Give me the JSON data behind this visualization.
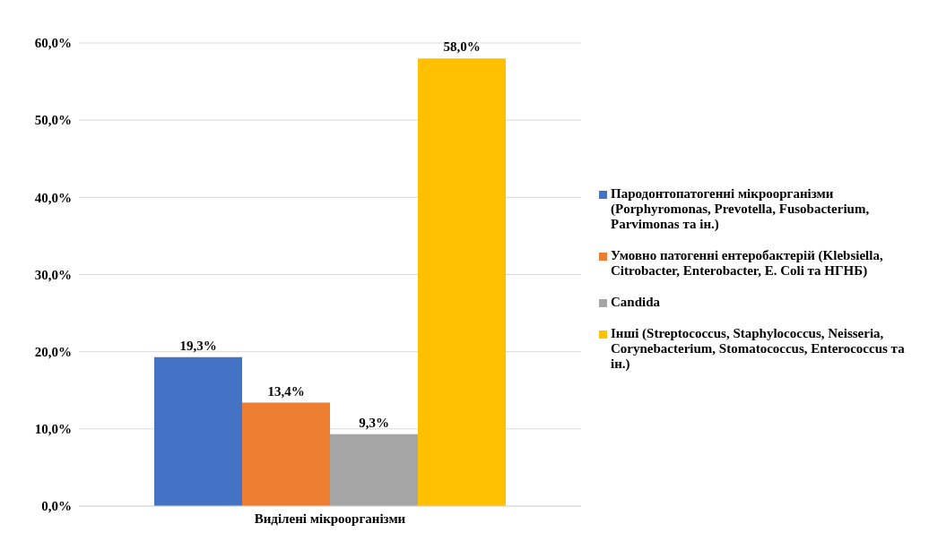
{
  "chart_data": {
    "type": "bar",
    "categories": [
      "Виділені мікроорганізми"
    ],
    "series": [
      {
        "name": "Пародонтопатогенні мікроорганізми (Porphyromonas, Prevotella, Fusobacterium, Parvimonas та ін.)",
        "color": "#4472c4",
        "values": [
          19.3
        ],
        "value_labels": [
          "19,3%"
        ]
      },
      {
        "name": "Умовно патогенні ентеробактерій (Klebsiella, Citrobacter, Enterobacter, E. Coli та НГНБ)",
        "color": "#ed7d31",
        "values": [
          13.4
        ],
        "value_labels": [
          "13,4%"
        ]
      },
      {
        "name": "Candida",
        "color": "#a5a5a5",
        "values": [
          9.3
        ],
        "value_labels": [
          "9,3%"
        ]
      },
      {
        "name": "Інші (Streptococcus, Staphylococcus, Neisseria, Corynebacterium, Stomatococcus, Enterococcus та ін.)",
        "color": "#ffc000",
        "values": [
          58.0
        ],
        "value_labels": [
          "58,0%"
        ]
      }
    ],
    "ylim": [
      0,
      60
    ],
    "yticks": [
      {
        "value": 0,
        "label": "0,0%"
      },
      {
        "value": 10,
        "label": "10,0%"
      },
      {
        "value": 20,
        "label": "20,0%"
      },
      {
        "value": 30,
        "label": "30,0%"
      },
      {
        "value": 40,
        "label": "40,0%"
      },
      {
        "value": 50,
        "label": "50,0%"
      },
      {
        "value": 60,
        "label": "60,0%"
      }
    ],
    "grid": "y",
    "legend": "right"
  }
}
